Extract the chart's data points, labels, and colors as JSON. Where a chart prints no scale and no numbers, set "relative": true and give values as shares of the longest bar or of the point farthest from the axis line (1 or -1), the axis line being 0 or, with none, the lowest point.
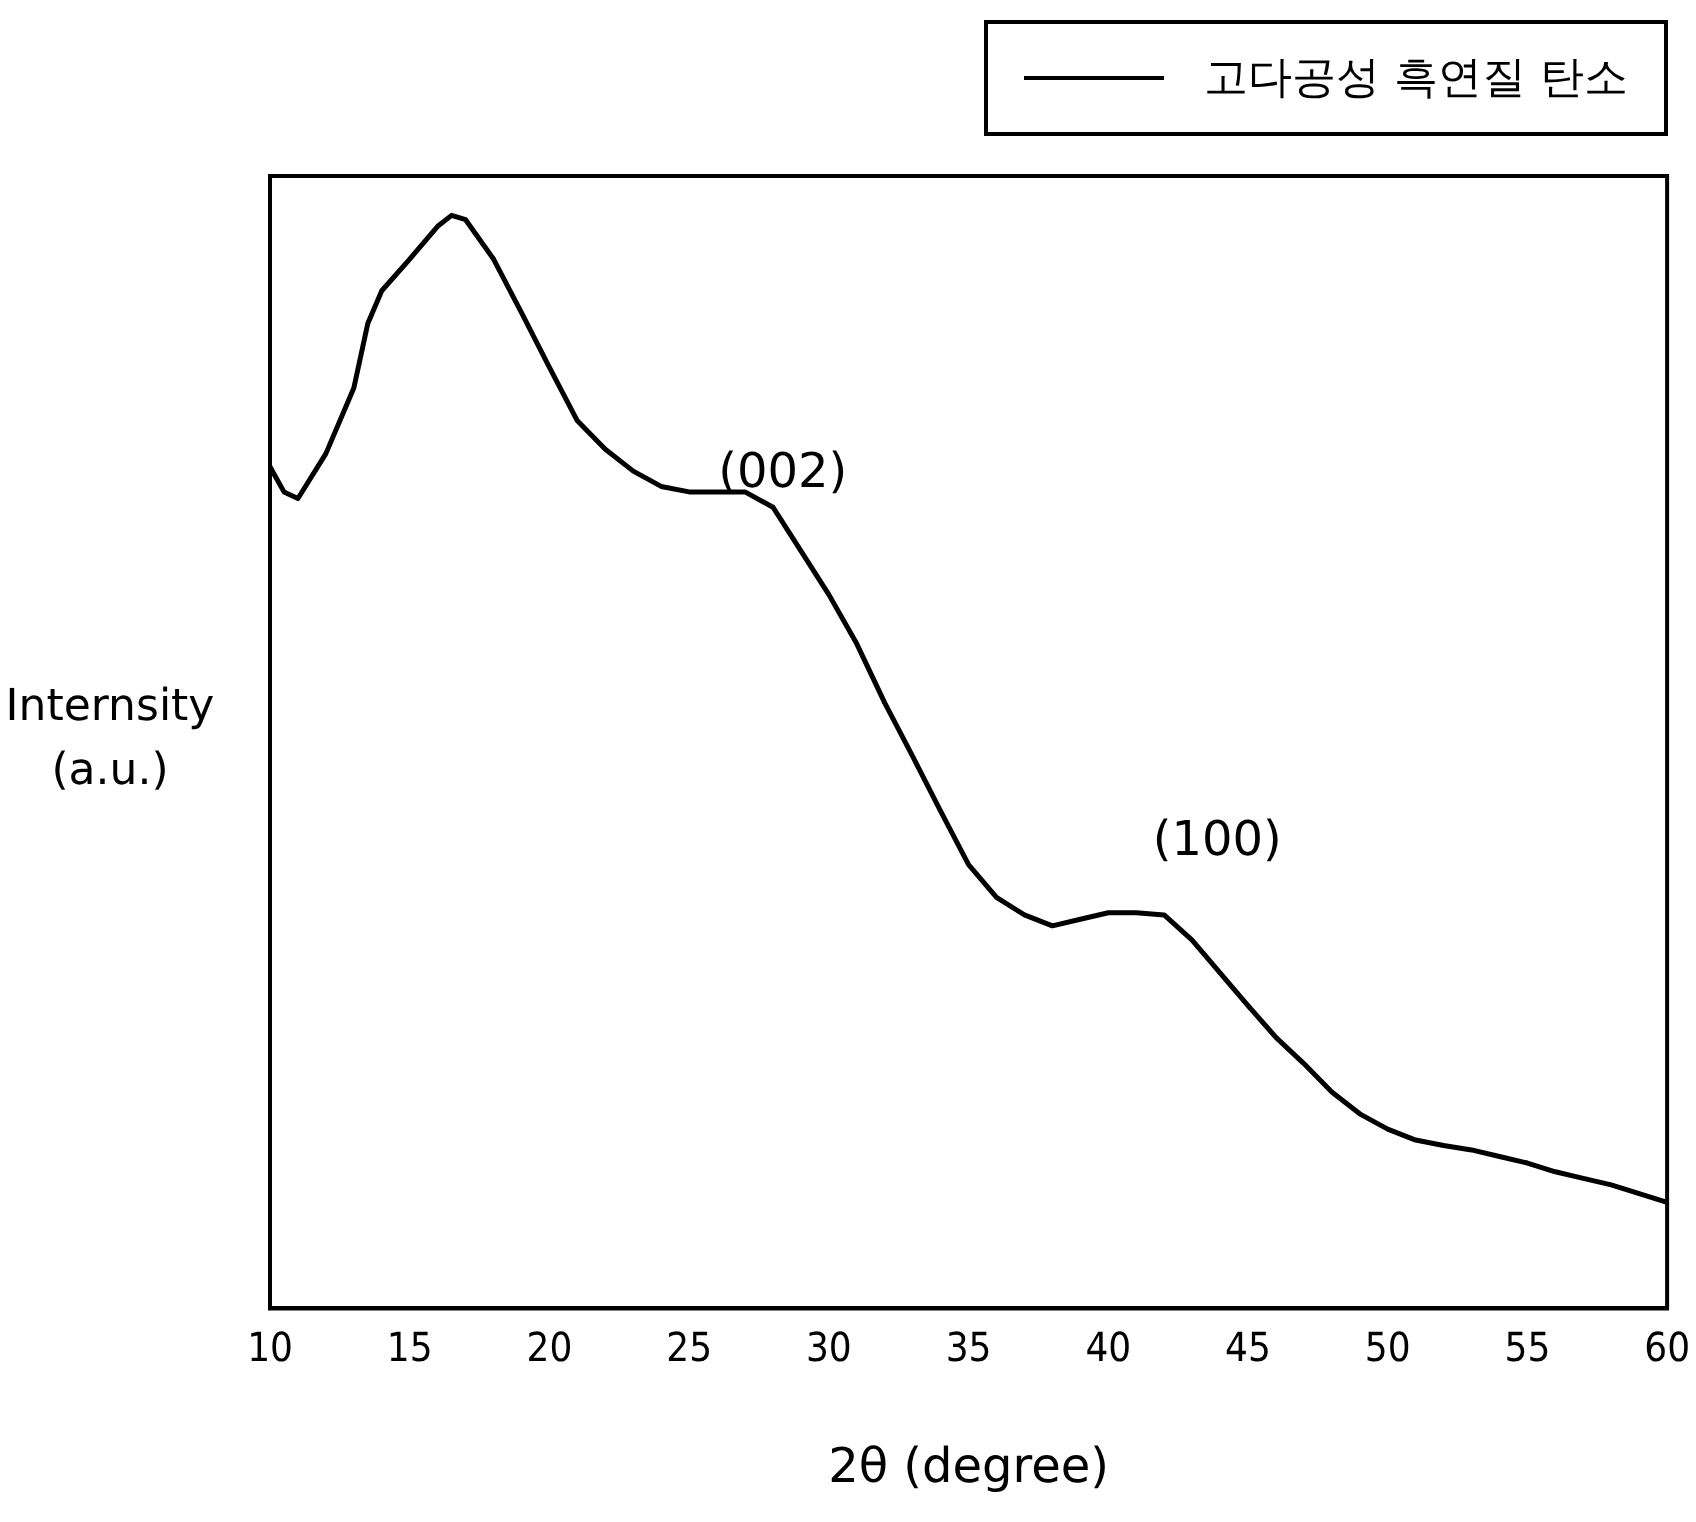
{
  "chart_data": {
    "type": "line",
    "xlabel": "2θ (degree)",
    "ylabel": "Internsity (a.u.)",
    "relative": true,
    "legend": "top right",
    "grid": false,
    "marker": "none",
    "line_style": "solid",
    "xlim": [
      10,
      60
    ],
    "xticks": [
      10,
      15,
      20,
      25,
      30,
      35,
      40,
      45,
      50,
      55,
      60
    ],
    "annotations": [
      "(002)",
      "(100)"
    ],
    "series": [
      {
        "name": "고다공성 흑연질 탄소",
        "color": "#000000",
        "x": [
          10,
          10.5,
          11,
          12,
          13,
          13.5,
          14,
          15,
          16,
          16.5,
          17,
          18,
          19,
          20,
          21,
          22,
          23,
          24,
          25,
          26,
          27,
          28,
          29,
          30,
          31,
          32,
          33,
          34,
          35,
          36,
          37,
          38,
          39,
          40,
          41,
          42,
          43,
          44,
          45,
          46,
          47,
          48,
          49,
          50,
          51,
          52,
          53,
          54,
          55,
          56,
          57,
          58,
          59,
          60
        ],
        "values": [
          0.77,
          0.747,
          0.741,
          0.782,
          0.842,
          0.901,
          0.931,
          0.96,
          0.99,
          1.0,
          0.996,
          0.96,
          0.911,
          0.861,
          0.812,
          0.786,
          0.766,
          0.752,
          0.747,
          0.747,
          0.747,
          0.733,
          0.693,
          0.653,
          0.608,
          0.554,
          0.505,
          0.455,
          0.406,
          0.376,
          0.36,
          0.35,
          0.356,
          0.362,
          0.362,
          0.36,
          0.337,
          0.307,
          0.277,
          0.248,
          0.224,
          0.198,
          0.178,
          0.164,
          0.154,
          0.149,
          0.145,
          0.139,
          0.133,
          0.125,
          0.119,
          0.113,
          0.105,
          0.097
        ]
      }
    ]
  }
}
